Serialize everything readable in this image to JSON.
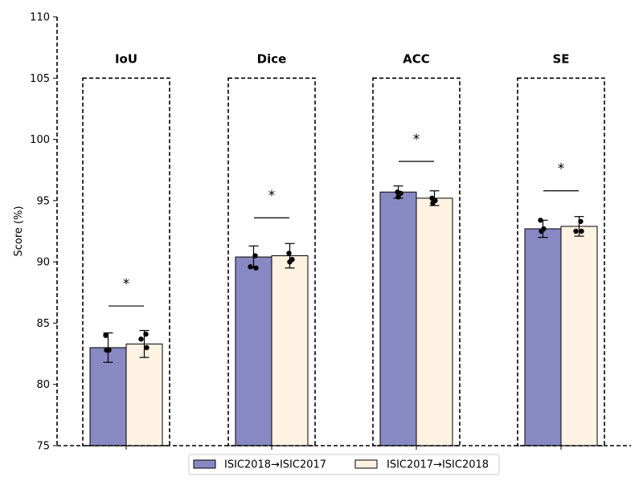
{
  "chart_data": {
    "type": "bar",
    "ylabel": "Score (%)",
    "xlabel": "",
    "ylim": [
      75,
      110
    ],
    "yticks": [
      75,
      80,
      85,
      90,
      95,
      100,
      105,
      110
    ],
    "categories": [
      "IoU",
      "Dice",
      "ACC",
      "SE"
    ],
    "grid": false,
    "legend_position": "bottom-center",
    "series": [
      {
        "name": "ISIC2018→ISIC2017",
        "color": "#8888c2",
        "values": [
          83.0,
          90.4,
          95.7,
          92.7
        ],
        "errors": [
          1.2,
          0.9,
          0.5,
          0.7
        ],
        "points": [
          [
            84.0,
            82.8,
            82.8
          ],
          [
            90.5,
            89.6,
            89.5
          ],
          [
            95.7,
            95.6,
            95.3
          ],
          [
            93.4,
            92.7,
            92.5
          ]
        ]
      },
      {
        "name": "ISIC2017→ISIC2018",
        "color": "#fef2e2",
        "values": [
          83.3,
          90.5,
          95.2,
          92.9
        ],
        "errors": [
          1.1,
          1.0,
          0.6,
          0.8
        ],
        "points": [
          [
            84.1,
            83.7,
            83.0
          ],
          [
            90.7,
            90.2,
            90.0
          ],
          [
            95.2,
            95.0,
            94.8
          ],
          [
            93.3,
            92.5,
            92.5
          ]
        ]
      }
    ],
    "group_boxes": {
      "top": 105
    },
    "significance": [
      {
        "category": "IoU",
        "label": "*",
        "line_y": 86.4
      },
      {
        "category": "Dice",
        "label": "*",
        "line_y": 93.6
      },
      {
        "category": "ACC",
        "label": "*",
        "line_y": 98.2
      },
      {
        "category": "SE",
        "label": "*",
        "line_y": 95.8
      }
    ]
  }
}
